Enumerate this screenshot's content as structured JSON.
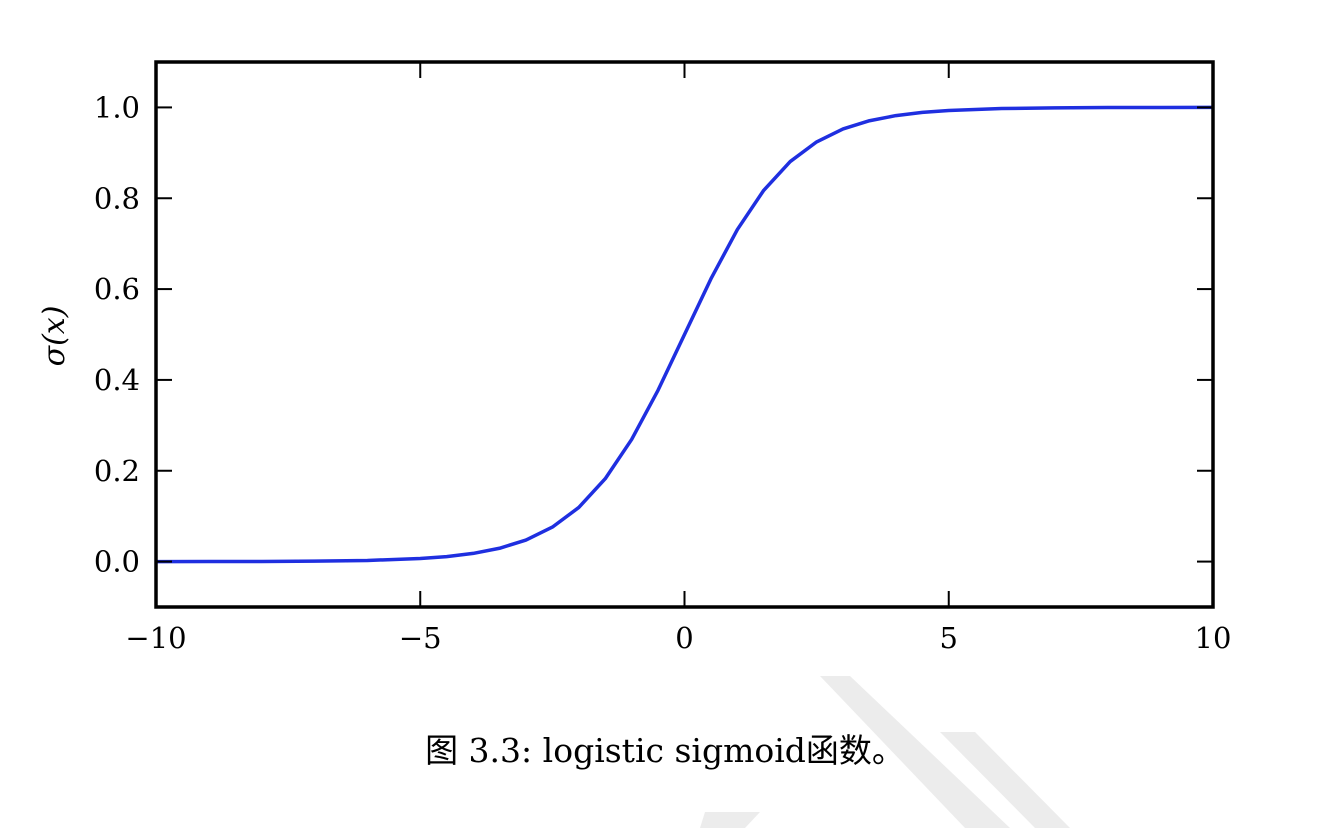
{
  "chart_data": {
    "type": "line",
    "title": "",
    "xlabel": "",
    "ylabel": "σ(x)",
    "xlim": [
      -10,
      10
    ],
    "ylim": [
      -0.1,
      1.1
    ],
    "xticks": [
      -10,
      -5,
      0,
      5,
      10
    ],
    "xtick_labels": [
      "−10",
      "−5",
      "0",
      "5",
      "10"
    ],
    "yticks": [
      0.0,
      0.2,
      0.4,
      0.6,
      0.8,
      1.0
    ],
    "ytick_labels": [
      "0.0",
      "0.2",
      "0.4",
      "0.6",
      "0.8",
      "1.0"
    ],
    "grid": false,
    "legend": "none",
    "series": [
      {
        "color": "#1f2fe0",
        "x": [
          -10,
          -9,
          -8,
          -7,
          -6,
          -5,
          -4.5,
          -4,
          -3.5,
          -3,
          -2.5,
          -2,
          -1.5,
          -1,
          -0.5,
          0,
          0.5,
          1,
          1.5,
          2,
          2.5,
          3,
          3.5,
          4,
          4.5,
          5,
          6,
          7,
          8,
          9,
          10
        ],
        "y": [
          0.0,
          0.0001,
          0.0003,
          0.0009,
          0.0025,
          0.0067,
          0.011,
          0.018,
          0.0293,
          0.0474,
          0.0759,
          0.1192,
          0.1824,
          0.2689,
          0.3775,
          0.5,
          0.6225,
          0.7311,
          0.8176,
          0.8808,
          0.9241,
          0.9526,
          0.9707,
          0.982,
          0.989,
          0.9933,
          0.9975,
          0.9991,
          0.9997,
          0.9999,
          1.0
        ]
      }
    ]
  },
  "caption": "图 3.3: logistic sigmoid函数。",
  "watermark_color": "#e6e6e6"
}
